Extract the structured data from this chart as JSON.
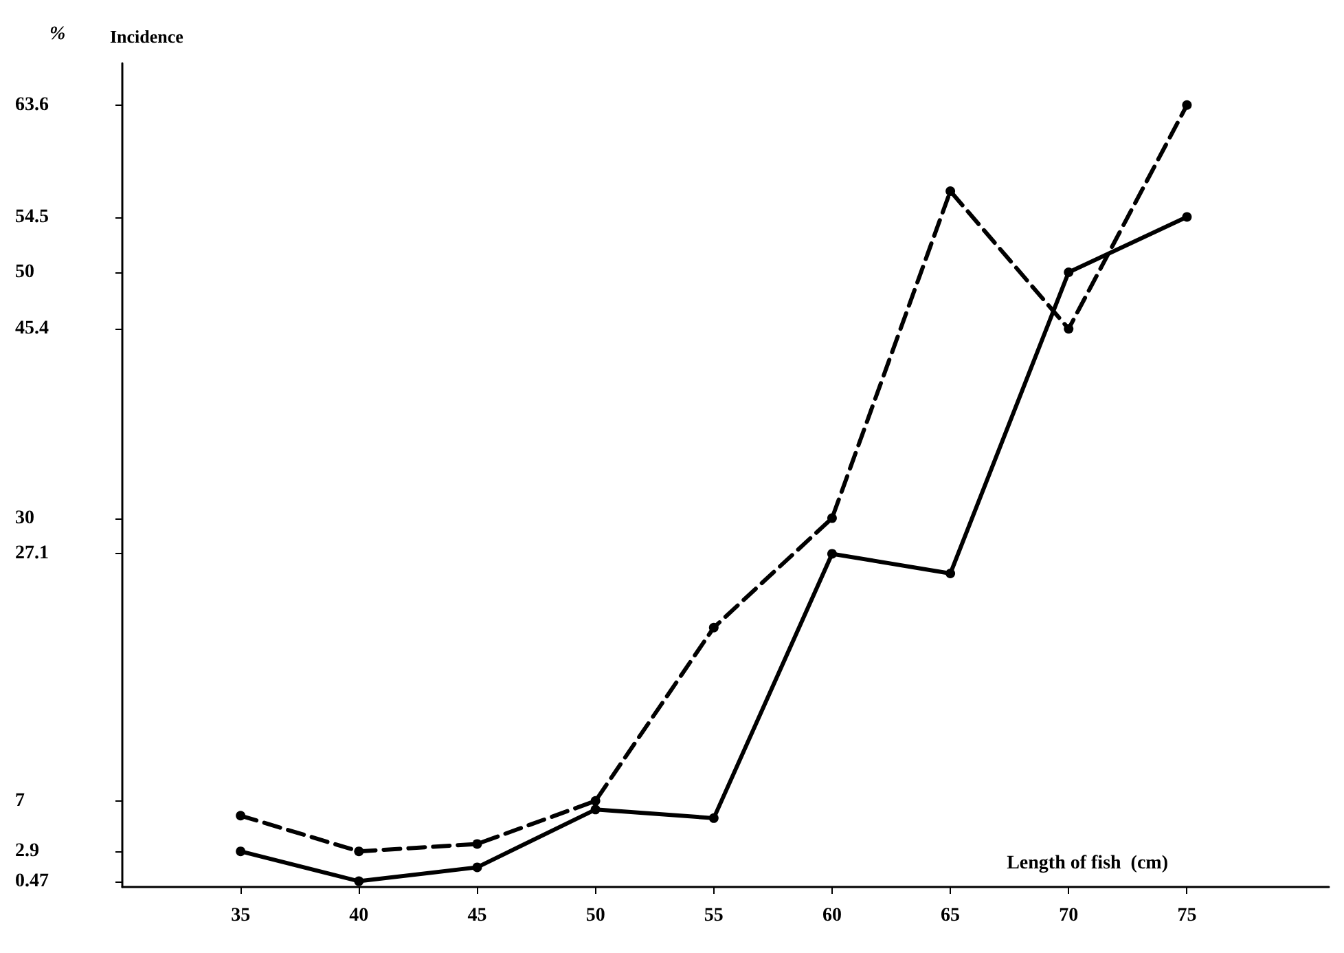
{
  "chart_data": {
    "type": "line",
    "ylabel": "Incidence",
    "xlabel": "Length of fish  (cm)",
    "annotations": [
      "%"
    ],
    "x": [
      35,
      40,
      45,
      50,
      55,
      60,
      65,
      70,
      75
    ],
    "series": [
      {
        "color": "#000000",
        "line_style": "dashed",
        "values": [
          5.8,
          2.9,
          3.5,
          7,
          21.1,
          30,
          56.6,
          45.4,
          63.6
        ]
      },
      {
        "color": "#000000",
        "line_style": "solid",
        "values": [
          2.9,
          0.47,
          1.6,
          6.3,
          5.6,
          27.1,
          25.5,
          50,
          54.5
        ]
      }
    ],
    "xlim": [
      30,
      81
    ],
    "xticks": [
      35,
      40,
      45,
      50,
      55,
      60,
      65,
      70,
      75
    ],
    "ylim": [
      0,
      67
    ],
    "yticks": [
      0.47,
      2.9,
      7,
      27.1,
      30,
      45.4,
      50,
      54.5,
      63.6
    ],
    "marker": "circle",
    "grid": false
  }
}
